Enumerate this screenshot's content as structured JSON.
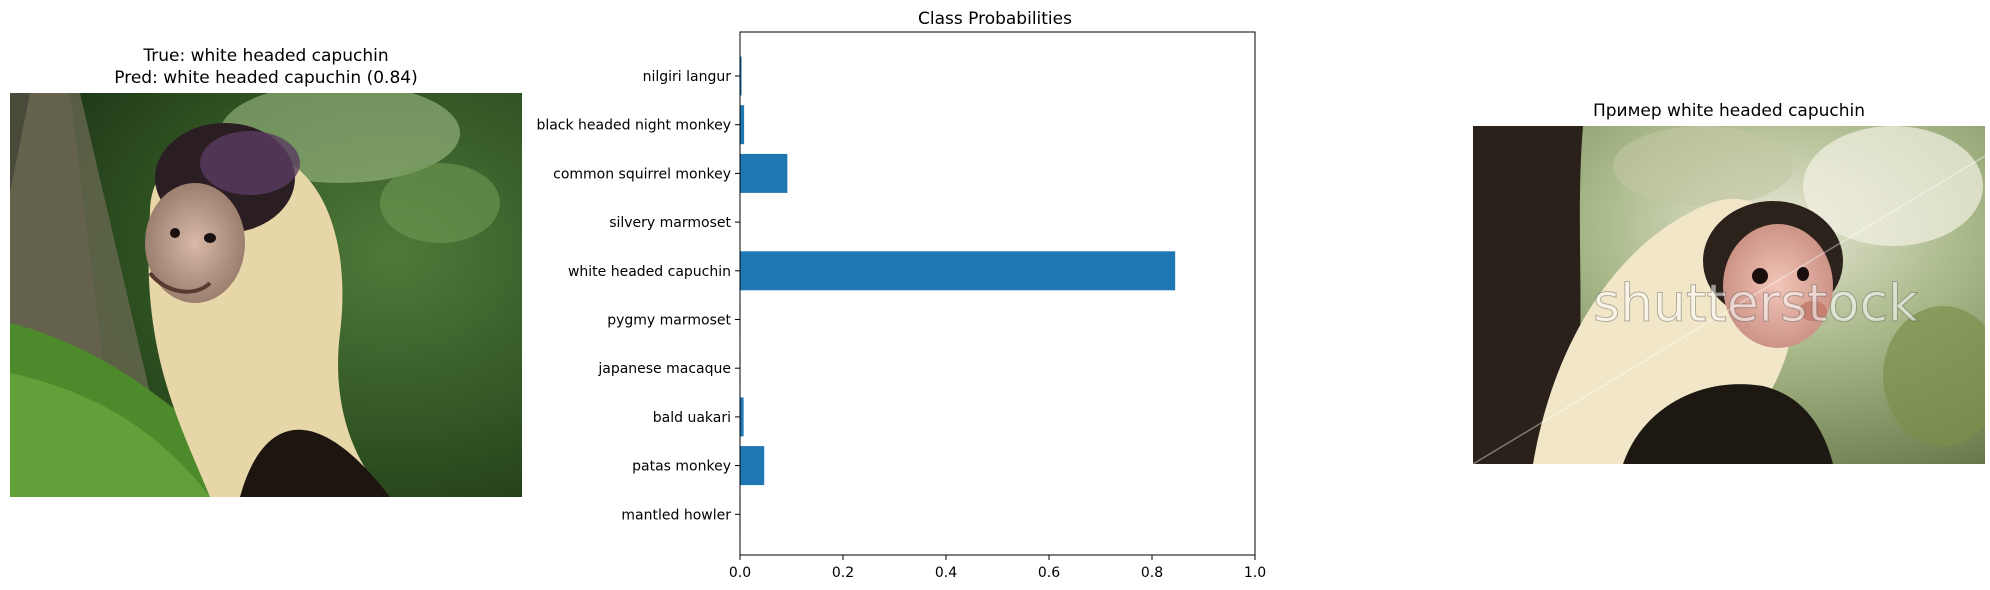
{
  "left_panel": {
    "title_line1": "True: white headed capuchin",
    "title_line2": "Pred: white headed capuchin (0.84)",
    "image": "white headed capuchin photo climbing tree"
  },
  "right_panel": {
    "title": "Пример white headed capuchin",
    "image": "white headed capuchin example photo",
    "watermark": "shutterstock"
  },
  "chart_data": {
    "type": "bar",
    "orientation": "horizontal",
    "title": "Class Probabilities",
    "categories": [
      "nilgiri langur",
      "black headed night monkey",
      "common squirrel monkey",
      "silvery marmoset",
      "white headed capuchin",
      "pygmy marmoset",
      "japanese macaque",
      "bald uakari",
      "patas monkey",
      "mantled howler"
    ],
    "values": [
      0.003,
      0.008,
      0.092,
      0.001,
      0.845,
      0.001,
      0.001,
      0.007,
      0.047,
      0.001
    ],
    "xlim": [
      0,
      1.0
    ],
    "xticks": [
      "0.0",
      "0.2",
      "0.4",
      "0.6",
      "0.8",
      "1.0"
    ],
    "bar_color": "#1f77b4",
    "grid": false
  }
}
